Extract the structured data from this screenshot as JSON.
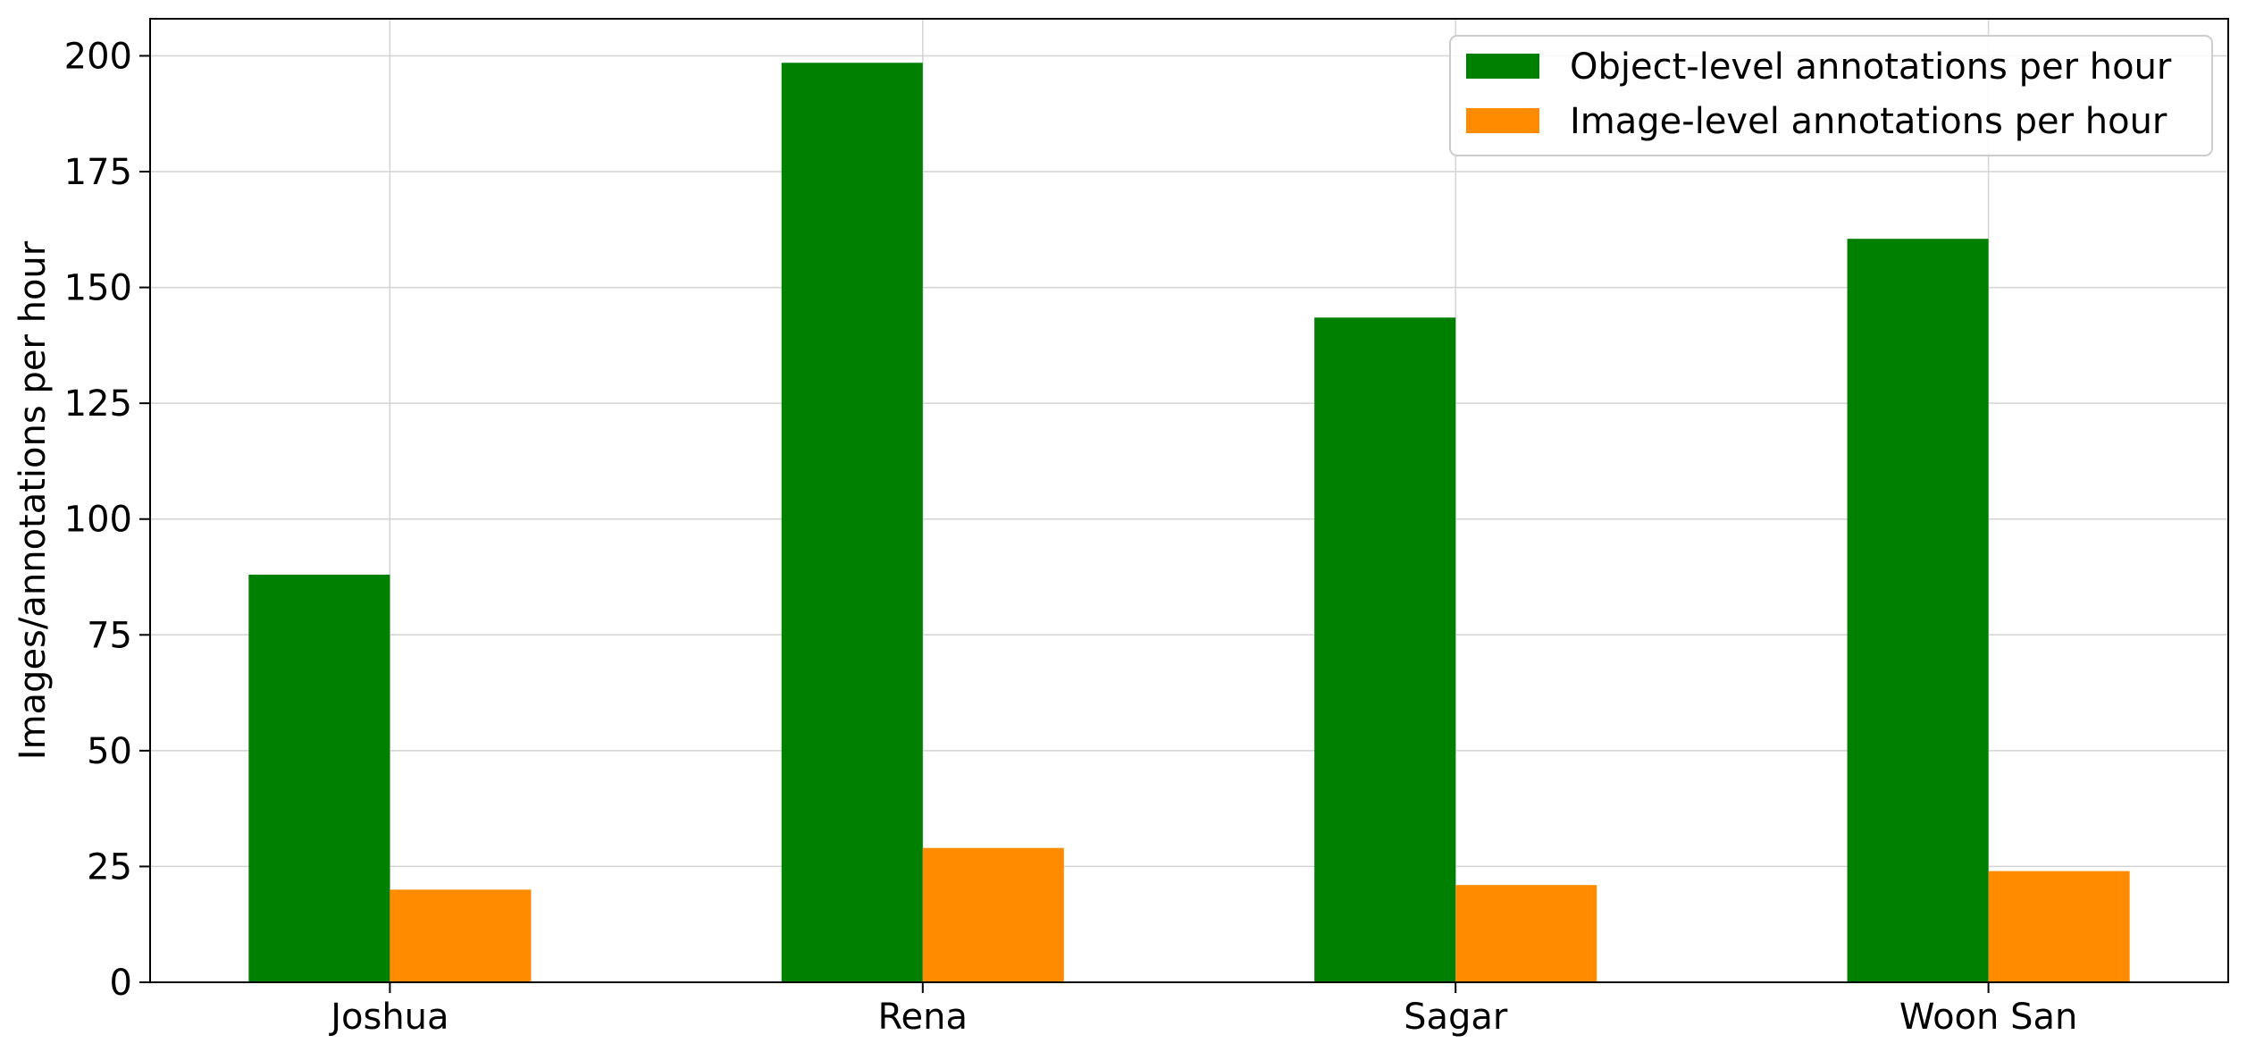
{
  "chart_data": {
    "type": "bar",
    "title": "",
    "xlabel": "",
    "ylabel": "Images/annotations  per hour",
    "categories": [
      "Joshua",
      "Rena",
      "Sagar",
      "Woon San"
    ],
    "series": [
      {
        "name": "Object-level annotations per hour",
        "color": "#008000",
        "values": [
          88,
          198.5,
          143.5,
          160.5
        ]
      },
      {
        "name": "Image-level annotations per hour",
        "color": "#ff8c00",
        "values": [
          20,
          29,
          21,
          24
        ]
      }
    ],
    "ylim": [
      0,
      208
    ],
    "yticks": [
      0,
      25,
      50,
      75,
      100,
      125,
      150,
      175,
      200
    ],
    "grid": true,
    "legend_position": "top-right"
  }
}
